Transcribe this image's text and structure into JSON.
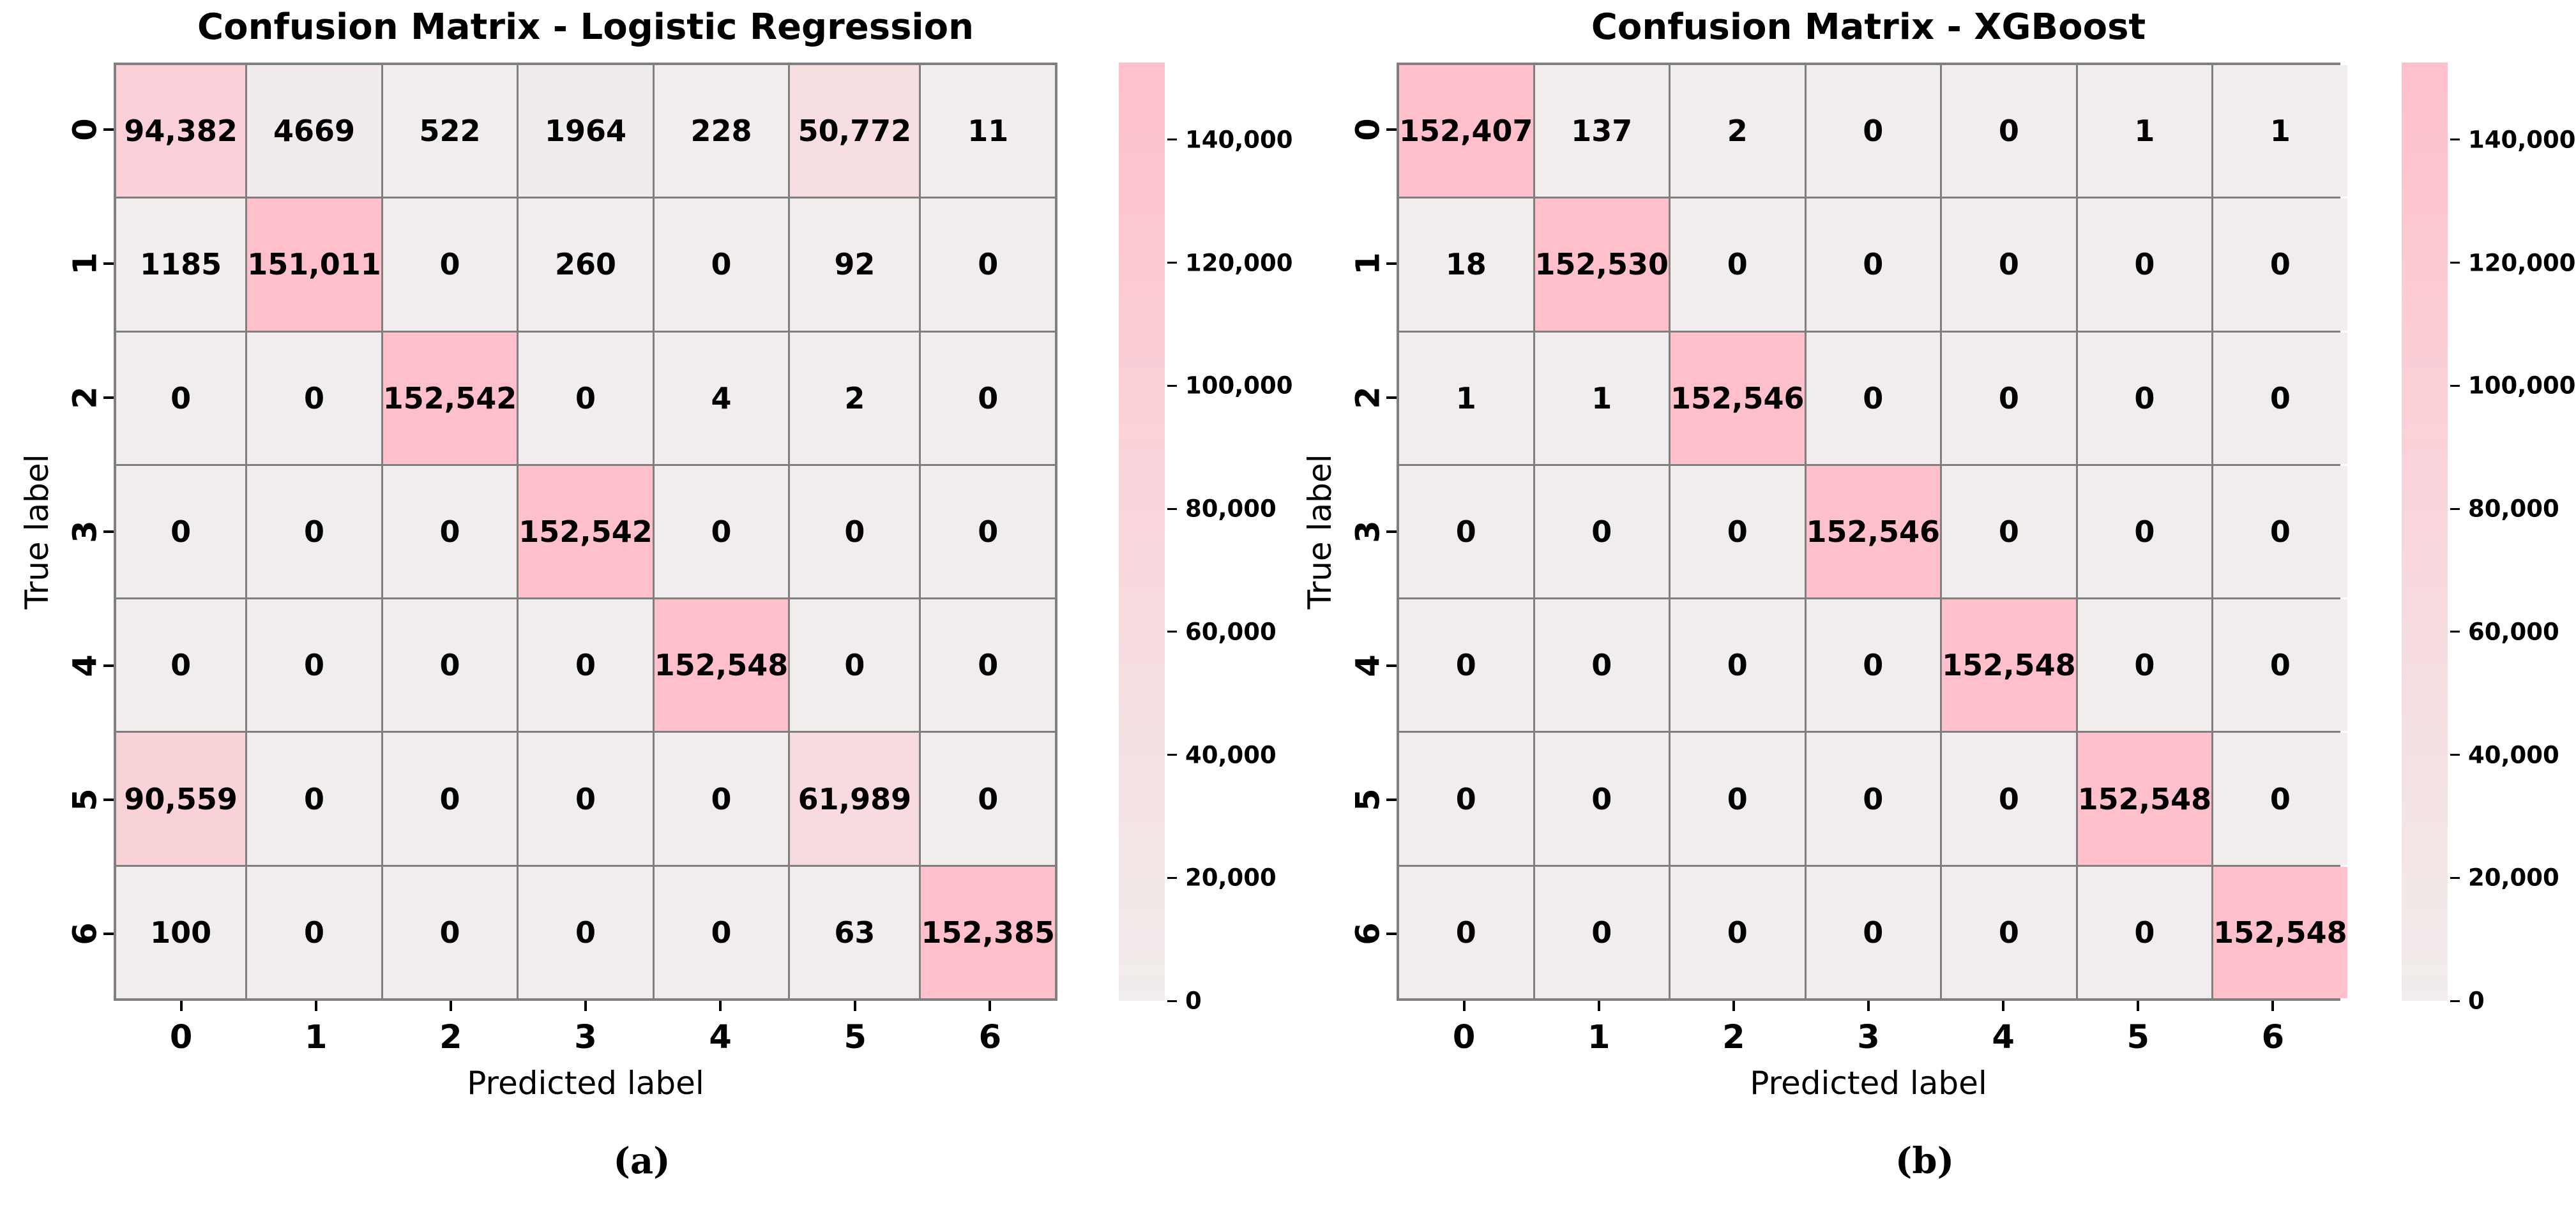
{
  "figure": {
    "background": "#ffffff"
  },
  "chart_data": [
    {
      "type": "heatmap",
      "panel_id": "a",
      "title": "Confusion Matrix - Logistic Regression",
      "xlabel": "Predicted label",
      "ylabel": "True label",
      "caption": "(a)",
      "x_tick_labels": [
        "0",
        "1",
        "2",
        "3",
        "4",
        "5",
        "6"
      ],
      "y_tick_labels": [
        "0",
        "1",
        "2",
        "3",
        "4",
        "5",
        "6"
      ],
      "matrix": [
        [
          94382,
          4669,
          522,
          1964,
          228,
          50772,
          11
        ],
        [
          1185,
          151011,
          0,
          260,
          0,
          92,
          0
        ],
        [
          0,
          0,
          152542,
          0,
          4,
          2,
          0
        ],
        [
          0,
          0,
          0,
          152542,
          0,
          0,
          0
        ],
        [
          0,
          0,
          0,
          0,
          152548,
          0,
          0
        ],
        [
          90559,
          0,
          0,
          0,
          0,
          61989,
          0
        ],
        [
          100,
          0,
          0,
          0,
          0,
          63,
          152385
        ]
      ],
      "colormap": {
        "low": "#f1edec",
        "high": "#ffc0cb",
        "grid_line": "#7f7f7f"
      },
      "colorbar": {
        "position": "right",
        "vmin": 0,
        "vmax": 152548,
        "ticks": [
          0,
          20000,
          40000,
          60000,
          80000,
          100000,
          120000,
          140000
        ],
        "tick_labels": [
          "0",
          "20,000",
          "40,000",
          "60,000",
          "80,000",
          "100,000",
          "120,000",
          "140,000"
        ]
      },
      "grid": true
    },
    {
      "type": "heatmap",
      "panel_id": "b",
      "title": "Confusion Matrix - XGBoost",
      "xlabel": "Predicted label",
      "ylabel": "True label",
      "caption": "(b)",
      "x_tick_labels": [
        "0",
        "1",
        "2",
        "3",
        "4",
        "5",
        "6"
      ],
      "y_tick_labels": [
        "0",
        "1",
        "2",
        "3",
        "4",
        "5",
        "6"
      ],
      "matrix": [
        [
          152407,
          137,
          2,
          0,
          0,
          1,
          1
        ],
        [
          18,
          152530,
          0,
          0,
          0,
          0,
          0
        ],
        [
          1,
          1,
          152546,
          0,
          0,
          0,
          0
        ],
        [
          0,
          0,
          0,
          152546,
          0,
          0,
          0
        ],
        [
          0,
          0,
          0,
          0,
          152548,
          0,
          0
        ],
        [
          0,
          0,
          0,
          0,
          0,
          152548,
          0
        ],
        [
          0,
          0,
          0,
          0,
          0,
          0,
          152548
        ]
      ],
      "colormap": {
        "low": "#f1edec",
        "high": "#ffc0cb",
        "grid_line": "#7f7f7f"
      },
      "colorbar": {
        "position": "right",
        "vmin": 0,
        "vmax": 152548,
        "ticks": [
          0,
          20000,
          40000,
          60000,
          80000,
          100000,
          120000,
          140000
        ],
        "tick_labels": [
          "0",
          "20,000",
          "40,000",
          "60,000",
          "80,000",
          "100,000",
          "120,000",
          "140,000"
        ]
      },
      "grid": true
    }
  ]
}
